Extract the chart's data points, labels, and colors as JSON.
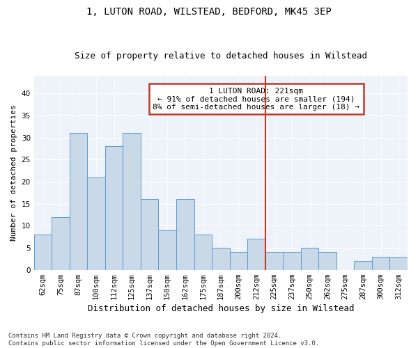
{
  "title1": "1, LUTON ROAD, WILSTEAD, BEDFORD, MK45 3EP",
  "title2": "Size of property relative to detached houses in Wilstead",
  "xlabel": "Distribution of detached houses by size in Wilstead",
  "ylabel": "Number of detached properties",
  "categories": [
    "62sqm",
    "75sqm",
    "87sqm",
    "100sqm",
    "112sqm",
    "125sqm",
    "137sqm",
    "150sqm",
    "162sqm",
    "175sqm",
    "187sqm",
    "200sqm",
    "212sqm",
    "225sqm",
    "237sqm",
    "250sqm",
    "262sqm",
    "275sqm",
    "287sqm",
    "300sqm",
    "312sqm"
  ],
  "values": [
    8,
    12,
    31,
    21,
    28,
    31,
    16,
    9,
    16,
    8,
    5,
    4,
    7,
    4,
    4,
    5,
    4,
    0,
    2,
    3,
    3
  ],
  "bar_color": "#c9d9e8",
  "bar_edge_color": "#5b9bd5",
  "vline_color": "#c0392b",
  "annotation_box_text": "1 LUTON ROAD: 221sqm\n← 91% of detached houses are smaller (194)\n8% of semi-detached houses are larger (18) →",
  "box_edge_color": "#c0392b",
  "ylim": [
    0,
    44
  ],
  "yticks": [
    0,
    5,
    10,
    15,
    20,
    25,
    30,
    35,
    40
  ],
  "footer": "Contains HM Land Registry data © Crown copyright and database right 2024.\nContains public sector information licensed under the Open Government Licence v3.0.",
  "background_color": "#eef2f9",
  "title1_fontsize": 10,
  "title2_fontsize": 9,
  "xlabel_fontsize": 9,
  "ylabel_fontsize": 8,
  "tick_fontsize": 7.5,
  "footer_fontsize": 6.5,
  "annot_fontsize": 8
}
